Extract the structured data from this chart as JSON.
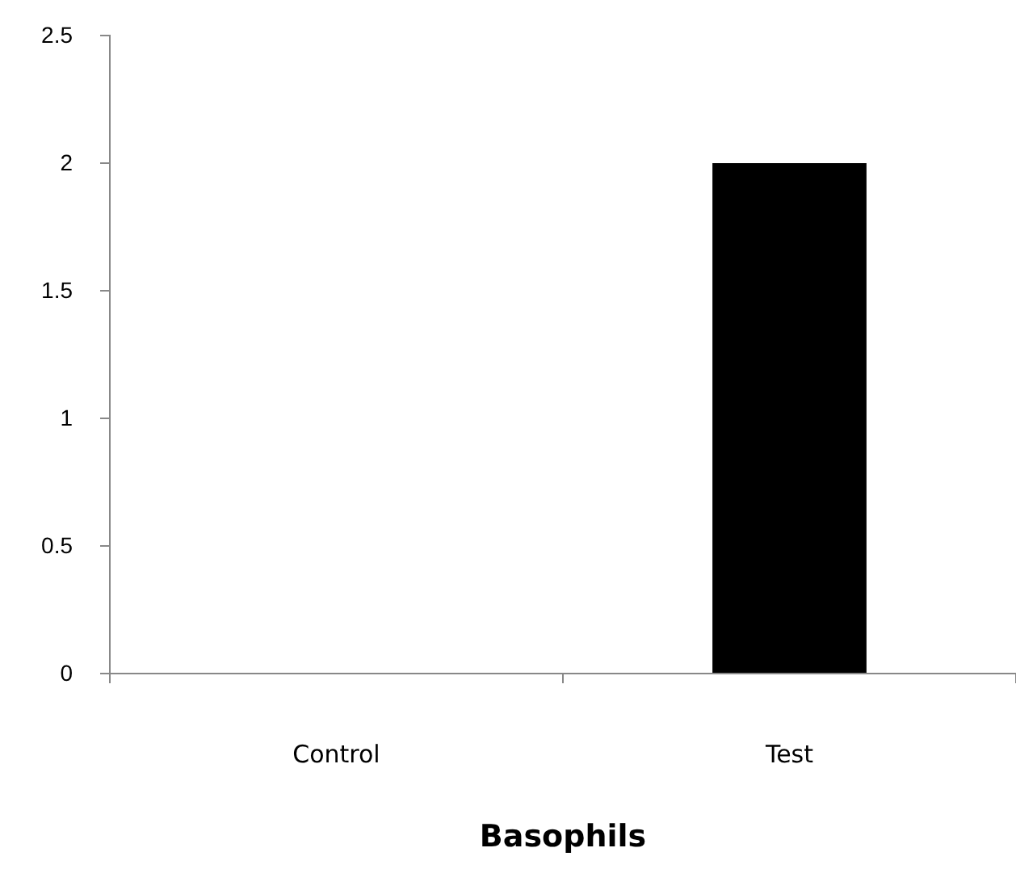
{
  "chart_data": {
    "type": "bar",
    "xlabel": "Basophils",
    "categories": [
      "Control",
      "Test"
    ],
    "values": [
      0,
      2
    ],
    "color": "#000000",
    "ylim": [
      0,
      2.5
    ],
    "yticks": [
      0,
      0.5,
      1,
      1.5,
      2,
      2.5
    ],
    "grid": false
  }
}
